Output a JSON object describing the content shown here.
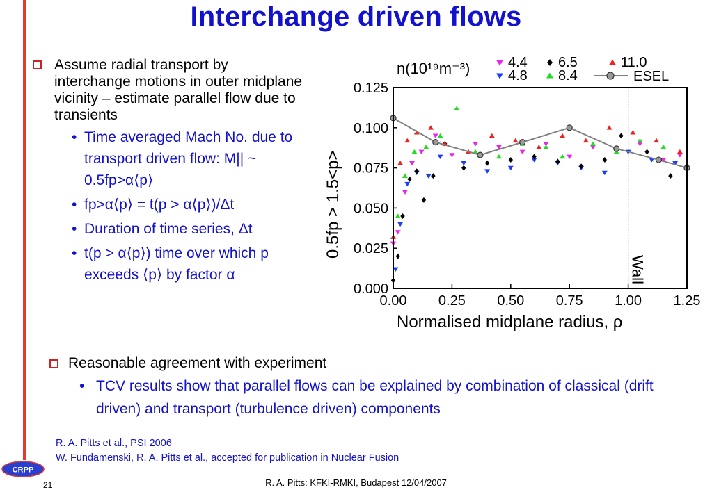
{
  "title": "Interchange driven flows",
  "left_list": {
    "main": "Assume radial transport by interchange motions in outer midplane vicinity – estimate parallel flow due to transients",
    "sub": [
      "Time averaged Mach No. due to transport driven flow: M|| ~ 0.5fp>α⟨p⟩",
      "fp>α⟨p⟩ = t(p > α⟨p⟩)/Δt",
      "Duration of time series, Δt",
      "t(p > α⟨p⟩) time over which p exceeds ⟨p⟩ by factor α"
    ]
  },
  "bottom_list": {
    "main": "Reasonable agreement with experiment",
    "sub": "TCV results show that parallel flows can be explained by combination of classical (drift driven) and transport (turbulence driven) components"
  },
  "references": [
    "R. A. Pitts et al., PSI 2006",
    "W. Fundamenski, R. A. Pitts et al., accepted for publication in Nuclear Fusion"
  ],
  "footer": "R. A. Pitts: KFKI-RMKI, Budapest 12/04/2007",
  "slide_number": "21",
  "logo_text": "CRPP",
  "colors": {
    "title": "#1212cc",
    "accent_red": "#e23a2e",
    "magenta": "#ee22ee",
    "blue": "#1a3cff",
    "green": "#22dd22",
    "red": "#ee2222",
    "black": "#000000",
    "grey": "#808080"
  },
  "chart_data": {
    "type": "scatter",
    "xlabel": "Normalised midplane radius, ρ",
    "ylabel": "0.5fp > 1.5<p>",
    "xlim": [
      0.0,
      1.25
    ],
    "ylim": [
      0.0,
      0.125
    ],
    "xticks": [
      "0.00",
      "0.25",
      "0.50",
      "0.75",
      "1.00",
      "1.25"
    ],
    "yticks": [
      "0.000",
      "0.025",
      "0.050",
      "0.075",
      "0.100",
      "0.125"
    ],
    "legend_title": "n(10¹⁹m⁻³)",
    "annotation": "Wall",
    "wall_x": 1.0,
    "series": [
      {
        "name": "4.4",
        "marker": "triangle-down",
        "color": "#ee22ee",
        "x": [
          0.0,
          0.02,
          0.05,
          0.08,
          0.12,
          0.18,
          0.25,
          0.35,
          0.45,
          0.55,
          0.65,
          0.75,
          0.85,
          0.95,
          1.05,
          1.15,
          1.22
        ],
        "y": [
          0.028,
          0.035,
          0.06,
          0.078,
          0.085,
          0.095,
          0.083,
          0.09,
          0.088,
          0.085,
          0.09,
          0.082,
          0.088,
          0.085,
          0.09,
          0.08,
          0.083
        ]
      },
      {
        "name": "4.8",
        "marker": "triangle-down",
        "color": "#1a3cff",
        "x": [
          0.01,
          0.03,
          0.06,
          0.1,
          0.15,
          0.2,
          0.3,
          0.4,
          0.5,
          0.6,
          0.7,
          0.8,
          0.9,
          1.0,
          1.1,
          1.2
        ],
        "y": [
          0.012,
          0.04,
          0.065,
          0.072,
          0.07,
          0.082,
          0.078,
          0.073,
          0.075,
          0.08,
          0.078,
          0.075,
          0.072,
          0.085,
          0.08,
          0.078
        ]
      },
      {
        "name": "6.5",
        "marker": "diamond",
        "color": "#000000",
        "x": [
          0.0,
          0.02,
          0.04,
          0.07,
          0.1,
          0.13,
          0.17,
          0.22,
          0.3,
          0.4,
          0.5,
          0.6,
          0.7,
          0.8,
          0.9,
          0.97,
          1.08,
          1.18
        ],
        "y": [
          0.005,
          0.02,
          0.045,
          0.068,
          0.073,
          0.055,
          0.07,
          0.09,
          0.075,
          0.078,
          0.08,
          0.082,
          0.079,
          0.076,
          0.08,
          0.095,
          0.085,
          0.07
        ]
      },
      {
        "name": "8.4",
        "marker": "triangle-up",
        "color": "#22dd22",
        "x": [
          0.02,
          0.05,
          0.09,
          0.14,
          0.2,
          0.27,
          0.35,
          0.45,
          0.55,
          0.65,
          0.72,
          0.85,
          0.95,
          1.05,
          1.15
        ],
        "y": [
          0.045,
          0.07,
          0.085,
          0.088,
          0.095,
          0.112,
          0.085,
          0.082,
          0.09,
          0.088,
          0.082,
          0.09,
          0.085,
          0.092,
          0.088
        ]
      },
      {
        "name": "11.0",
        "marker": "triangle-up",
        "color": "#ee2222",
        "x": [
          0.0,
          0.03,
          0.06,
          0.1,
          0.16,
          0.22,
          0.32,
          0.42,
          0.52,
          0.62,
          0.72,
          0.82,
          0.92,
          1.02,
          1.12,
          1.22
        ],
        "y": [
          0.032,
          0.078,
          0.092,
          0.097,
          0.1,
          0.09,
          0.085,
          0.095,
          0.092,
          0.088,
          0.095,
          0.092,
          0.1,
          0.097,
          0.092,
          0.085
        ]
      },
      {
        "name": "ESEL",
        "marker": "line-circle",
        "color": "#808080",
        "x": [
          0.0,
          0.18,
          0.37,
          0.55,
          0.75,
          0.95,
          1.13,
          1.25
        ],
        "y": [
          0.106,
          0.091,
          0.083,
          0.091,
          0.1,
          0.087,
          0.08,
          0.075
        ]
      }
    ]
  }
}
